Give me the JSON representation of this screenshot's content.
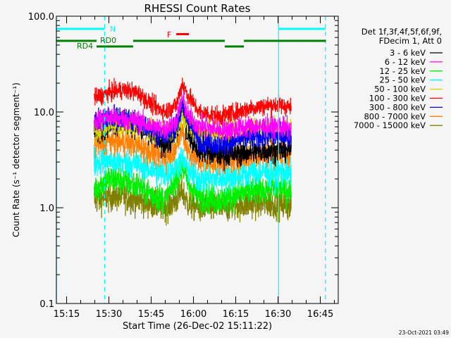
{
  "chart_data": {
    "type": "line",
    "title": "RHESSI Count Rates",
    "xlabel": "Start Time (26-Dec-02 15:11:22)",
    "ylabel": "Count Rate (s⁻¹ detector segment⁻¹)",
    "yscale": "log",
    "ylim": [
      0.1,
      100
    ],
    "xlim_minutes_after_1500": [
      11.367,
      111.367
    ],
    "y_tick_labels": [
      "0.1",
      "1.0",
      "10.0",
      "100.0"
    ],
    "y_tick_values": [
      0.1,
      1,
      10,
      100
    ],
    "x_tick_labels": [
      "15:15",
      "15:30",
      "15:45",
      "16:00",
      "16:15",
      "16:30",
      "16:45"
    ],
    "x_tick_values_minutes_after_1500": [
      15,
      30,
      45,
      60,
      75,
      90,
      105
    ],
    "legend_placement": "right",
    "legend_header": [
      "Det 1f,3f,4f,5f,6f,9f,",
      "FDecim 1, Att 0"
    ],
    "timestamp": "23-Oct-2021 03:49",
    "x_minutes_after_1500": [
      25,
      30,
      35,
      40,
      45,
      50,
      54,
      56,
      58,
      62,
      70,
      80,
      90,
      95
    ],
    "series": [
      {
        "name": "3 - 6 keV",
        "color": "#000000",
        "values": [
          6,
          7.5,
          8,
          7,
          5.5,
          4.5,
          6,
          10,
          6,
          4,
          3.5,
          3.8,
          4,
          4
        ]
      },
      {
        "name": "6 - 12 keV",
        "color": "#ff00ff",
        "values": [
          8,
          9,
          8.5,
          8,
          7,
          6.5,
          8,
          14,
          9,
          7,
          6.5,
          7,
          7,
          6.5
        ]
      },
      {
        "name": "12 - 25 keV",
        "color": "#00ee00",
        "values": [
          1.6,
          2,
          1.9,
          1.7,
          1.4,
          1.2,
          2,
          2.8,
          1.8,
          1.3,
          1.2,
          1.5,
          1.6,
          1.5
        ]
      },
      {
        "name": "25 - 50 keV",
        "color": "#00ffff",
        "values": [
          3,
          3.1,
          3,
          2.8,
          2.5,
          2.2,
          2.7,
          3.2,
          2.5,
          2,
          2,
          2.3,
          2.4,
          2.2
        ]
      },
      {
        "name": "50 - 100 keV",
        "color": "#d4d400",
        "values": [
          6.5,
          7.5,
          7.5,
          7,
          6.5,
          6,
          6.5,
          9,
          7,
          6,
          6,
          6.5,
          6.5,
          6.5
        ]
      },
      {
        "name": "100 - 300 keV",
        "color": "#ff0000",
        "values": [
          14,
          16,
          17,
          16,
          12,
          10,
          12,
          20,
          15,
          10,
          9,
          11,
          12,
          11
        ]
      },
      {
        "name": "300 - 800 keV",
        "color": "#0000ee",
        "values": [
          8,
          9,
          8.5,
          8,
          6.5,
          5.5,
          7,
          11,
          8,
          5,
          4.5,
          5.5,
          5.5,
          5.5
        ]
      },
      {
        "name": "800 - 7000 keV",
        "color": "#ff8000",
        "values": [
          4.5,
          5,
          4.8,
          4.5,
          3.8,
          3.3,
          4.5,
          6.5,
          4,
          3,
          3,
          3.5,
          3.8,
          3.7
        ]
      },
      {
        "name": "7000 - 15000 keV",
        "color": "#808000",
        "values": [
          1.2,
          1.3,
          1.3,
          1.2,
          1.1,
          1.0,
          1.2,
          1.5,
          1.1,
          1.0,
          1.0,
          1.1,
          1.1,
          1.0
        ]
      }
    ],
    "data_range_minutes_after_1500": [
      24.7,
      94.7
    ],
    "vertical_lines": [
      {
        "t": 11.367,
        "color": "#00ffff",
        "style": "solid"
      },
      {
        "t": 28.5,
        "color": "#00ffff",
        "style": "dashed"
      },
      {
        "t": 90.2,
        "color": "#00ffff",
        "style": "solid"
      },
      {
        "t": 106.8,
        "color": "#00ffff",
        "style": "dashed"
      }
    ],
    "annotations": {
      "night": {
        "label": "N",
        "color": "#00ffff",
        "intervals": [
          [
            11.367,
            28.5
          ],
          [
            90.2,
            106.8
          ]
        ]
      },
      "flare": {
        "label": "F",
        "color": "#ff0000",
        "intervals": [
          [
            53.9,
            58.4
          ]
        ]
      },
      "decimation_upper": {
        "label": "RD0",
        "color": "#008000",
        "intervals": [
          [
            11.367,
            25.6
          ],
          [
            38.6,
            71.1
          ],
          [
            77.9,
            107.0
          ]
        ]
      },
      "decimation_lower": {
        "label": "RD4",
        "color": "#008000",
        "intervals": [
          [
            25.6,
            38.6
          ],
          [
            71.1,
            77.9
          ]
        ]
      }
    }
  }
}
